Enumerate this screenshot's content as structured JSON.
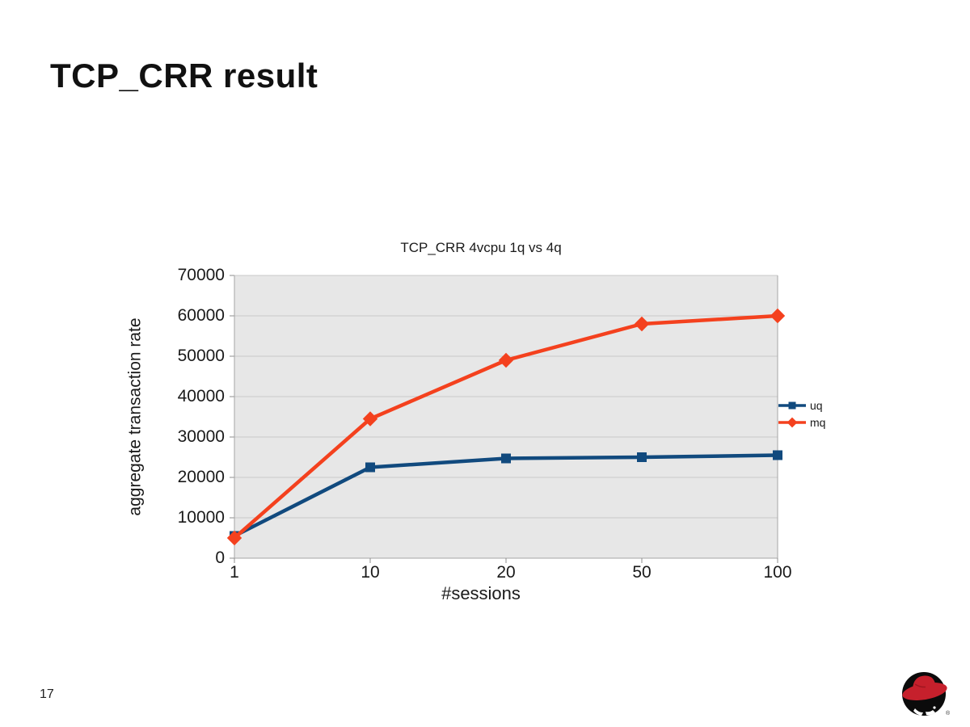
{
  "slide": {
    "title": "TCP_CRR result",
    "page_number": "17",
    "logo_name": "redhat-shadowman-logo",
    "logo_registered_mark": "®"
  },
  "chart_data": {
    "type": "line",
    "title": "TCP_CRR 4vcpu 1q vs 4q",
    "xlabel": "#sessions",
    "ylabel": "aggregate transaction rate",
    "categories": [
      "1",
      "10",
      "20",
      "50",
      "100"
    ],
    "series": [
      {
        "name": "uq",
        "color": "#114a7e",
        "marker": "square",
        "values": [
          5500,
          22500,
          24700,
          25000,
          25500
        ]
      },
      {
        "name": "mq",
        "color": "#f4411e",
        "marker": "diamond",
        "values": [
          5000,
          34500,
          49000,
          58000,
          60000
        ]
      }
    ],
    "ylim": [
      0,
      70000
    ],
    "y_ticks": [
      "0",
      "10000",
      "20000",
      "30000",
      "40000",
      "50000",
      "60000",
      "70000"
    ],
    "grid": true,
    "legend_position": "right",
    "plot_bg": "#e7e7e7",
    "grid_color": "#c9c9c9",
    "axis_color": "#a6a6a6",
    "tick_color": "#8c8c8c"
  }
}
